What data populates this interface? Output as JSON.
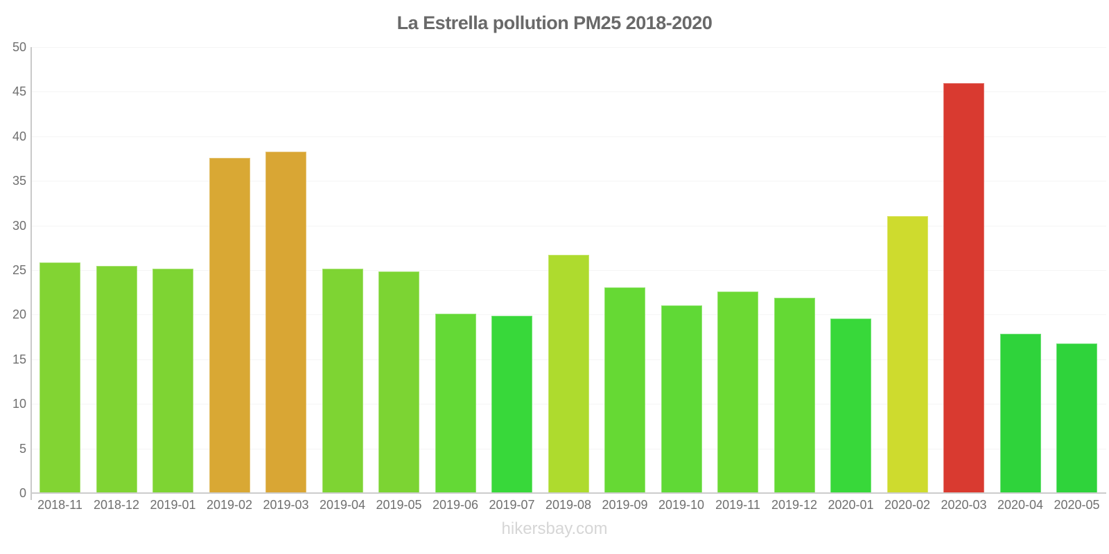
{
  "page": {
    "title": "La Estrella pollution PM25 2018-2020",
    "footer": "hikersbay.com"
  },
  "colors": {
    "title_text": "#696969",
    "axis_text": "#6f6f6f",
    "axis_line": "#c9c9c9",
    "gridline": "#f5f5f5",
    "watermark_text": "#d6d6d6",
    "background": "#ffffff"
  },
  "chart_data": {
    "type": "bar",
    "title": "La Estrella pollution PM25 2018-2020",
    "xlabel": "",
    "ylabel": "",
    "ylim": [
      0,
      50
    ],
    "y_ticks": [
      0,
      5,
      10,
      15,
      20,
      25,
      30,
      35,
      40,
      45,
      50
    ],
    "grid": "faint-horizontal",
    "legend": "none",
    "categories": [
      "2018-11",
      "2018-12",
      "2019-01",
      "2019-02",
      "2019-03",
      "2019-04",
      "2019-05",
      "2019-06",
      "2019-07",
      "2019-08",
      "2019-09",
      "2019-10",
      "2019-11",
      "2019-12",
      "2020-01",
      "2020-02",
      "2020-03",
      "2020-04",
      "2020-05"
    ],
    "values": [
      25.8,
      25.4,
      25.1,
      37.5,
      38.2,
      25.1,
      24.8,
      20.0,
      19.8,
      26.6,
      23.0,
      21.0,
      22.5,
      21.8,
      19.5,
      31.0,
      45.9,
      17.8,
      16.7
    ],
    "bar_colors": [
      "#82D433",
      "#80D433",
      "#7ED433",
      "#D9A834",
      "#D9A634",
      "#7ED433",
      "#7CD433",
      "#64D936",
      "#38D83A",
      "#AEDB2E",
      "#66D934",
      "#60D936",
      "#6CD933",
      "#64D934",
      "#38D83A",
      "#CEDB2E",
      "#D93A30",
      "#2FD33B",
      "#2FD33B"
    ]
  }
}
